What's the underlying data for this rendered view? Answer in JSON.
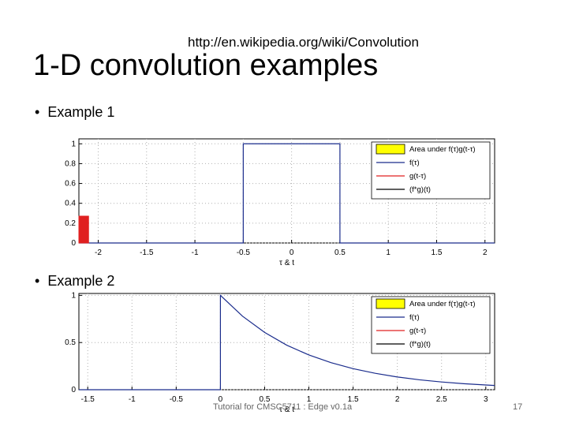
{
  "slide": {
    "url": "http://en.wikipedia.org/wiki/Convolution",
    "title": "1-D convolution examples",
    "bullet1": "Example 1",
    "bullet2": "Example 2",
    "footer": "Tutorial for CMSC5711 : Edge v0.1a",
    "page_number": "17"
  },
  "colors": {
    "f": "#1a2c8c",
    "g": "#e02020",
    "conv": "#000000",
    "area": "#ffff00",
    "grid": "#b0b0b0"
  },
  "chart_data": [
    {
      "type": "line",
      "xlabel": "τ & t",
      "xlim": [
        -2.2,
        2.1
      ],
      "ylim": [
        0,
        1.05
      ],
      "xticks": [
        -2,
        -1.5,
        -1,
        -0.5,
        0,
        0.5,
        1,
        1.5,
        2
      ],
      "xtick_labels": [
        "-2",
        "-1.5",
        "-1",
        "-0.5",
        "0",
        "0.5",
        "1",
        "1.5",
        "2"
      ],
      "yticks": [
        0,
        0.2,
        0.4,
        0.6,
        0.8,
        1
      ],
      "ytick_labels": [
        "0",
        "0.2",
        "0.4",
        "0.6",
        "0.8",
        "1"
      ],
      "grid": true,
      "legend_position": "top-right",
      "legend": [
        "Area under f(τ)g(t-τ)",
        "f(τ)",
        "g(t-τ)",
        "(f*g)(t)"
      ],
      "series": [
        {
          "name": "f(τ)",
          "x": [
            -2.2,
            -0.5,
            -0.5,
            0.5,
            0.5,
            2.1
          ],
          "y": [
            0,
            0,
            1,
            1,
            0,
            0
          ]
        },
        {
          "name": "g(t-τ)",
          "x": [
            -2.2,
            -2.1,
            -2.1,
            -2.2
          ],
          "y": [
            0,
            0,
            0.27,
            0.27
          ]
        }
      ]
    },
    {
      "type": "line",
      "xlabel": "τ & t",
      "xlim": [
        -1.6,
        3.1
      ],
      "ylim": [
        0,
        1.02
      ],
      "xticks": [
        -1.5,
        -1,
        -0.5,
        0,
        0.5,
        1,
        1.5,
        2,
        2.5,
        3
      ],
      "xtick_labels": [
        "-1.5",
        "-1",
        "-0.5",
        "0",
        "0.5",
        "1",
        "1.5",
        "2",
        "2.5",
        "3"
      ],
      "yticks": [
        0,
        0.5,
        1
      ],
      "ytick_labels": [
        "0",
        "0.5",
        "1"
      ],
      "grid": true,
      "legend_position": "top-right",
      "legend": [
        "Area under f(τ)g(t-τ)",
        "f(τ)",
        "g(t-τ)",
        "(f*g)(t)"
      ],
      "series": [
        {
          "name": "f(τ)",
          "x": [
            -1.6,
            0,
            0,
            0.25,
            0.5,
            0.75,
            1,
            1.25,
            1.5,
            1.75,
            2,
            2.25,
            2.5,
            2.75,
            3,
            3.1
          ],
          "y": [
            0,
            0,
            1,
            0.779,
            0.607,
            0.472,
            0.368,
            0.287,
            0.223,
            0.174,
            0.135,
            0.105,
            0.082,
            0.064,
            0.05,
            0.045
          ]
        }
      ]
    }
  ]
}
